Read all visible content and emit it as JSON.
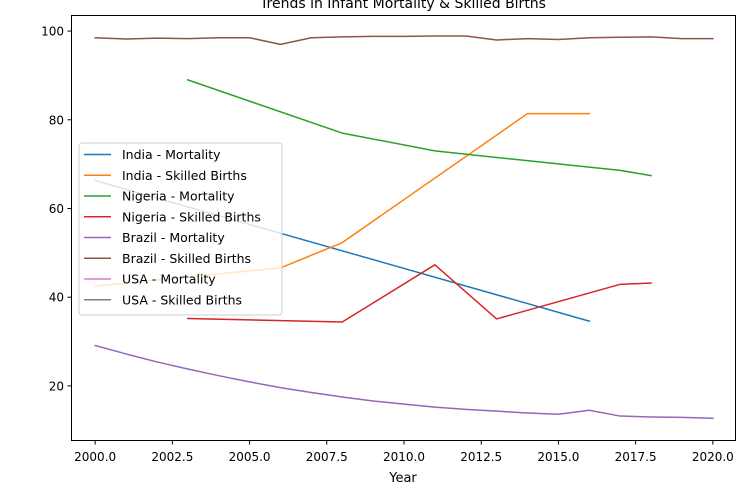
{
  "chart_data": {
    "type": "line",
    "title": "Trends in Infant Mortality & Skilled Births",
    "xlabel": "Year",
    "ylabel": "",
    "xlim": [
      1999.25,
      2020.75
    ],
    "ylim": [
      7.8,
      103.4
    ],
    "x_ticks": [
      2000,
      2002.5,
      2005,
      2007.5,
      2010,
      2012.5,
      2015,
      2017.5,
      2020
    ],
    "x_tick_labels": [
      "2000.0",
      "2002.5",
      "2005.0",
      "2007.5",
      "2010.0",
      "2012.5",
      "2015.0",
      "2017.5",
      "2020.0"
    ],
    "y_ticks": [
      20,
      40,
      60,
      80,
      100
    ],
    "y_tick_labels": [
      "20",
      "40",
      "60",
      "80",
      "100"
    ],
    "grid": false,
    "legend_position": "center-left",
    "series": [
      {
        "name": "India - Mortality",
        "color": "#1f77b4",
        "x": [
          2000,
          2016
        ],
        "y": [
          66.3,
          34.6
        ]
      },
      {
        "name": "India - Skilled Births",
        "color": "#ff7f0e",
        "x": [
          2000,
          2006,
          2008,
          2014,
          2016
        ],
        "y": [
          42.5,
          46.6,
          52.3,
          81.4,
          81.4
        ]
      },
      {
        "name": "Nigeria - Mortality",
        "color": "#2ca02c",
        "x": [
          2003,
          2008,
          2011,
          2013,
          2017,
          2018
        ],
        "y": [
          89.0,
          77.0,
          73.0,
          71.5,
          68.6,
          67.4
        ]
      },
      {
        "name": "Nigeria - Skilled Births",
        "color": "#d62728",
        "x": [
          2003,
          2008,
          2011,
          2013,
          2017,
          2018
        ],
        "y": [
          35.2,
          34.4,
          47.3,
          35.1,
          42.9,
          43.2
        ]
      },
      {
        "name": "Brazil - Mortality",
        "color": "#9467bd",
        "x": [
          2000,
          2001,
          2002,
          2003,
          2004,
          2005,
          2006,
          2007,
          2008,
          2009,
          2010,
          2011,
          2012,
          2013,
          2014,
          2015,
          2016,
          2017,
          2018,
          2019,
          2020
        ],
        "y": [
          29.1,
          27.2,
          25.4,
          23.8,
          22.3,
          20.9,
          19.6,
          18.5,
          17.5,
          16.6,
          15.9,
          15.2,
          14.7,
          14.3,
          13.9,
          13.6,
          14.5,
          13.2,
          13.0,
          12.9,
          12.7
        ]
      },
      {
        "name": "Brazil - Skilled Births",
        "color": "#8c564b",
        "x": [
          2000,
          2001,
          2002,
          2003,
          2004,
          2005,
          2006,
          2007,
          2008,
          2009,
          2010,
          2011,
          2012,
          2013,
          2014,
          2015,
          2016,
          2017,
          2018,
          2019,
          2020
        ],
        "y": [
          98.5,
          98.2,
          98.4,
          98.3,
          98.5,
          98.5,
          97.0,
          98.5,
          98.7,
          98.8,
          98.8,
          98.9,
          98.9,
          98.0,
          98.3,
          98.1,
          98.5,
          98.6,
          98.7,
          98.3,
          98.3
        ]
      },
      {
        "name": "USA - Mortality",
        "color": "#e377c2",
        "x": [],
        "y": []
      },
      {
        "name": "USA - Skilled Births",
        "color": "#7f7f7f",
        "x": [],
        "y": []
      }
    ]
  }
}
